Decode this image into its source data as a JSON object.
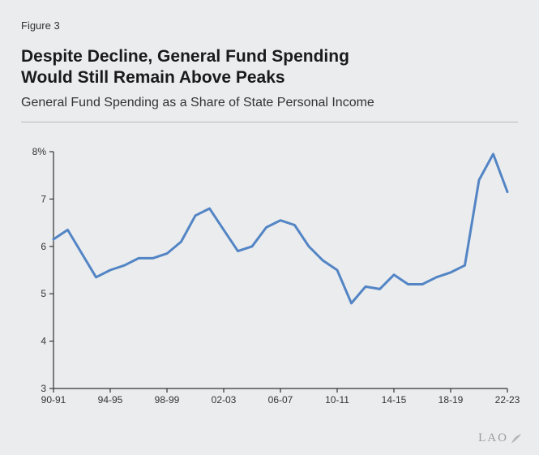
{
  "figure_label": "Figure 3",
  "title_line1": "Despite Decline, General Fund Spending",
  "title_line2": "Would Still Remain Above Peaks",
  "subtitle": "General Fund Spending as a Share of State Personal Income",
  "chart": {
    "type": "line",
    "background_color": "#ebecee",
    "line_color": "#5385c5",
    "line_width": 3,
    "axis_color": "#333333",
    "tick_fontsize": 12,
    "x_categories": [
      "90-91",
      "91-92",
      "92-93",
      "93-94",
      "94-95",
      "95-96",
      "96-97",
      "97-98",
      "98-99",
      "99-00",
      "00-01",
      "01-02",
      "02-03",
      "03-04",
      "04-05",
      "05-06",
      "06-07",
      "07-08",
      "08-09",
      "09-10",
      "10-11",
      "11-12",
      "12-13",
      "13-14",
      "14-15",
      "15-16",
      "16-17",
      "17-18",
      "18-19",
      "19-20",
      "20-21",
      "21-22",
      "22-23"
    ],
    "values": [
      6.15,
      6.35,
      5.85,
      5.35,
      5.5,
      5.6,
      5.75,
      5.75,
      5.85,
      6.1,
      6.65,
      6.8,
      6.35,
      5.9,
      6.0,
      6.4,
      6.55,
      6.45,
      6.0,
      5.7,
      5.5,
      4.8,
      5.15,
      5.1,
      5.4,
      5.2,
      5.2,
      5.35,
      5.45,
      5.6,
      7.4,
      7.95,
      7.15
    ],
    "x_tick_indices": [
      0,
      4,
      8,
      12,
      16,
      20,
      24,
      28,
      32
    ],
    "x_tick_labels": [
      "90-91",
      "94-95",
      "98-99",
      "02-03",
      "06-07",
      "10-11",
      "14-15",
      "18-19",
      "22-23"
    ],
    "y_ticks": [
      3,
      4,
      5,
      6,
      7,
      8
    ],
    "y_tick_labels": [
      "3",
      "4",
      "5",
      "6",
      "7",
      "8%"
    ],
    "ylim": [
      3,
      8
    ],
    "xlim": [
      0,
      32
    ]
  },
  "logo_text": "LAO",
  "logo_color": "#9a9c9f"
}
